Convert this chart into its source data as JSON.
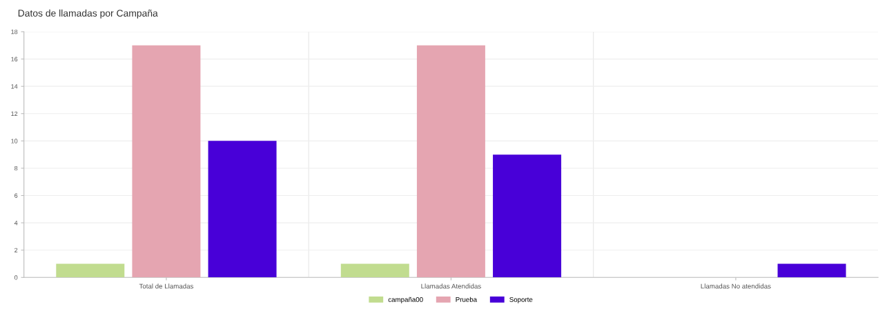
{
  "chart_data": {
    "type": "bar",
    "title": "Datos de llamadas por Campaña",
    "categories": [
      "Total de Llamadas",
      "Llamadas Atendidas",
      "Llamadas No atendidas"
    ],
    "series": [
      {
        "name": "campaña00",
        "color": "#c1dc8f",
        "values": [
          1,
          1,
          0
        ]
      },
      {
        "name": "Prueba",
        "color": "#e5a5b1",
        "values": [
          17,
          17,
          0
        ]
      },
      {
        "name": "Soporte",
        "color": "#4800d8",
        "values": [
          10,
          9,
          1
        ]
      }
    ],
    "ylim": [
      0,
      18
    ],
    "yticks": [
      0,
      2,
      4,
      6,
      8,
      10,
      12,
      14,
      16,
      18
    ],
    "grid": true,
    "legend": "bottom"
  }
}
